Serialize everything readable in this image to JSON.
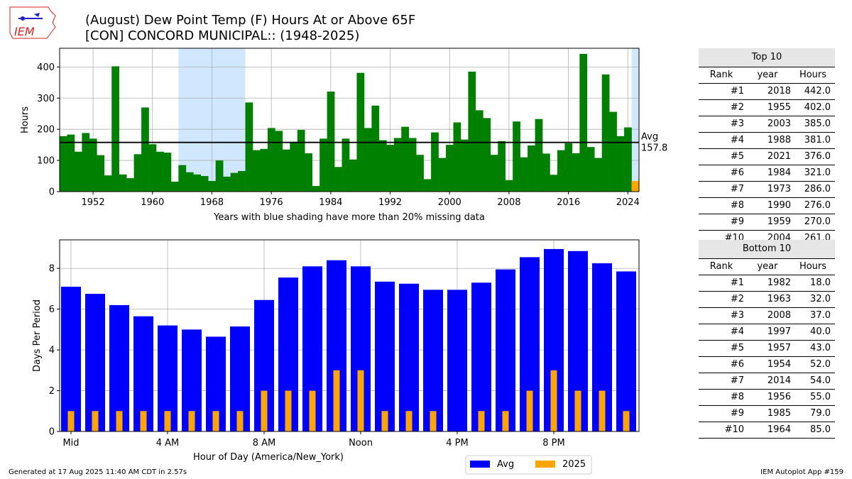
{
  "title": {
    "line1": "(August) Dew Point Temp (F) Hours At or Above 65F",
    "line2": "[CON] CONCORD MUNICIPAL:: (1948-2025)"
  },
  "logo": {
    "text": "IEM",
    "icon": "iowa-state-map-icon"
  },
  "colors": {
    "years_bar": "#008000",
    "current_year_bar": "#FFA500",
    "missing_shade": "#cfe8fd",
    "avg_bar": "#0000FF",
    "current_hour_bar": "#FFA500",
    "table_header_bg": "#e6e6e6"
  },
  "chart_data": [
    {
      "type": "bar",
      "ylabel": "Hours",
      "xlabel": "Years with blue shading have more than 20% missing data",
      "ylim": [
        0,
        460
      ],
      "xlim": [
        1947.5,
        2025.5
      ],
      "yticks": [
        0,
        100,
        200,
        300,
        400
      ],
      "xticks": [
        1952,
        1960,
        1968,
        1976,
        1984,
        1992,
        2000,
        2008,
        2016,
        2024
      ],
      "grid": true,
      "x": [
        1948,
        1949,
        1950,
        1951,
        1952,
        1953,
        1954,
        1955,
        1956,
        1957,
        1958,
        1959,
        1960,
        1961,
        1962,
        1963,
        1964,
        1965,
        1966,
        1967,
        1968,
        1969,
        1970,
        1971,
        1972,
        1973,
        1974,
        1975,
        1976,
        1977,
        1978,
        1979,
        1980,
        1981,
        1982,
        1983,
        1984,
        1985,
        1986,
        1987,
        1988,
        1989,
        1990,
        1991,
        1992,
        1993,
        1994,
        1995,
        1996,
        1997,
        1998,
        1999,
        2000,
        2001,
        2002,
        2003,
        2004,
        2005,
        2006,
        2007,
        2008,
        2009,
        2010,
        2011,
        2012,
        2013,
        2014,
        2015,
        2016,
        2017,
        2018,
        2019,
        2020,
        2021,
        2022,
        2023,
        2024,
        2025
      ],
      "values": [
        178,
        183,
        128,
        188,
        170,
        117,
        52,
        402,
        55,
        43,
        120,
        270,
        152,
        128,
        125,
        32,
        85,
        62,
        55,
        50,
        34,
        100,
        48,
        60,
        66,
        286,
        133,
        137,
        204,
        195,
        135,
        160,
        198,
        123,
        18,
        170,
        321,
        79,
        170,
        103,
        381,
        204,
        276,
        165,
        150,
        172,
        208,
        172,
        118,
        40,
        190,
        108,
        150,
        222,
        167,
        385,
        261,
        236,
        118,
        162,
        37,
        225,
        110,
        148,
        233,
        122,
        54,
        133,
        155,
        123,
        442,
        143,
        108,
        376,
        256,
        178,
        206,
        34
      ],
      "missing_shaded_ranges": [
        [
          1964,
          1972
        ],
        [
          2025,
          2025
        ]
      ],
      "highlight_year": 2025,
      "average": {
        "value": 157.8,
        "label": "Avg",
        "value_label": "157.8"
      }
    },
    {
      "type": "bar",
      "ylabel": "Days Per Period",
      "xlabel": "Hour of Day (America/New_York)",
      "ylim": [
        0,
        9.4
      ],
      "yticks": [
        0,
        2,
        4,
        6,
        8
      ],
      "xtick_labels": [
        "Mid",
        "4 AM",
        "8 AM",
        "Noon",
        "4 PM",
        "8 PM"
      ],
      "xtick_hours": [
        0,
        4,
        8,
        12,
        16,
        20
      ],
      "grid": true,
      "legend_position": "below-right",
      "series": [
        {
          "name": "Avg",
          "color": "#0000FF",
          "values": [
            7.1,
            6.75,
            6.2,
            5.65,
            5.2,
            5.0,
            4.65,
            5.15,
            6.45,
            7.55,
            8.1,
            8.4,
            8.1,
            7.35,
            7.25,
            6.95,
            6.95,
            7.3,
            7.95,
            8.55,
            8.95,
            8.85,
            8.25,
            7.85
          ]
        },
        {
          "name": "2025",
          "color": "#FFA500",
          "values": [
            1,
            1,
            1,
            1,
            1,
            1,
            1,
            1,
            2,
            2,
            2,
            3,
            3,
            1,
            1,
            1,
            0,
            1,
            1,
            2,
            3,
            2,
            2,
            1
          ]
        }
      ]
    }
  ],
  "top10": {
    "title": "Top 10",
    "headers": [
      "Rank",
      "year",
      "Hours"
    ],
    "rows": [
      [
        "#1",
        "2018",
        "442.0"
      ],
      [
        "#2",
        "1955",
        "402.0"
      ],
      [
        "#3",
        "2003",
        "385.0"
      ],
      [
        "#4",
        "1988",
        "381.0"
      ],
      [
        "#5",
        "2021",
        "376.0"
      ],
      [
        "#6",
        "1984",
        "321.0"
      ],
      [
        "#7",
        "1973",
        "286.0"
      ],
      [
        "#8",
        "1990",
        "276.0"
      ],
      [
        "#9",
        "1959",
        "270.0"
      ],
      [
        "#10",
        "2004",
        "261.0"
      ]
    ]
  },
  "bottom10": {
    "title": "Bottom 10",
    "headers": [
      "Rank",
      "year",
      "Hours"
    ],
    "rows": [
      [
        "#1",
        "1982",
        "18.0"
      ],
      [
        "#2",
        "1963",
        "32.0"
      ],
      [
        "#3",
        "2008",
        "37.0"
      ],
      [
        "#4",
        "1997",
        "40.0"
      ],
      [
        "#5",
        "1957",
        "43.0"
      ],
      [
        "#6",
        "1954",
        "52.0"
      ],
      [
        "#7",
        "2014",
        "54.0"
      ],
      [
        "#8",
        "1956",
        "55.0"
      ],
      [
        "#9",
        "1985",
        "79.0"
      ],
      [
        "#10",
        "1964",
        "85.0"
      ]
    ]
  },
  "footer": {
    "left": "Generated at 17 Aug 2025 11:40 AM CDT in 2.57s",
    "right": "IEM Autoplot App #159"
  }
}
